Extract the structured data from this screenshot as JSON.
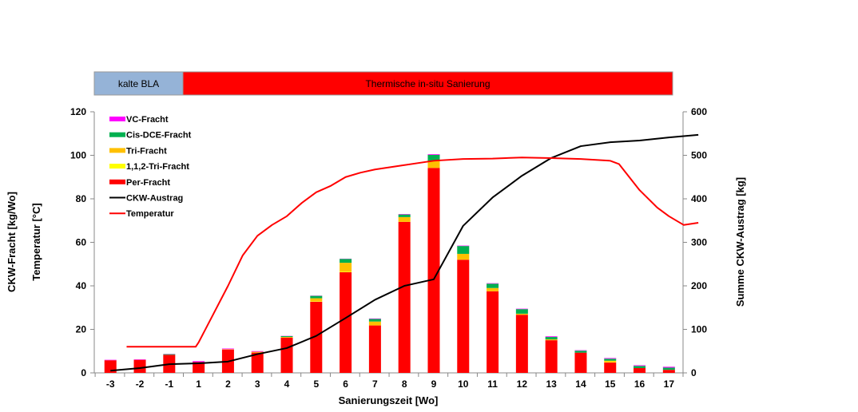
{
  "phase_bar": {
    "phases": [
      {
        "label": "kalte BLA",
        "from_category": "-3",
        "to_category": "1",
        "color": "#95B3D7"
      },
      {
        "label": "Thermische in-situ Sanierung",
        "from_category": "1",
        "to_category": "17",
        "color": "#FF0000"
      }
    ]
  },
  "chart_data": {
    "type": "bar",
    "stacked": true,
    "xlabel": "Sanierungszeit [Wo]",
    "ylabel_left": [
      "CKW-Fracht [kg/Wo]",
      "Temperatur [°C]"
    ],
    "ylabel_right": "Summe CKW-Austrag [kg]",
    "ylim_left": [
      0,
      120
    ],
    "yticks_left": [
      0,
      20,
      40,
      60,
      80,
      100,
      120
    ],
    "ylim_right": [
      0,
      600
    ],
    "yticks_right": [
      0,
      100,
      200,
      300,
      400,
      500,
      600
    ],
    "grid": false,
    "legend_position": "top-left",
    "categories": [
      "-3",
      "-2",
      "-1",
      "1",
      "2",
      "3",
      "4",
      "5",
      "6",
      "7",
      "8",
      "9",
      "10",
      "11",
      "12",
      "13",
      "14",
      "15",
      "16",
      "17"
    ],
    "series": [
      {
        "name": "Per-Fracht",
        "color": "#FF0000",
        "values": [
          5.8,
          6.0,
          8.3,
          5.0,
          10.7,
          9.3,
          16.2,
          32.7,
          46.3,
          21.8,
          69.4,
          94.2,
          52.0,
          37.5,
          26.7,
          15.0,
          9.3,
          4.8,
          2.2,
          1.4
        ]
      },
      {
        "name": "1,1,2-Tri-Fracht",
        "color": "#FFFF00",
        "values": [
          0,
          0,
          0,
          0,
          0,
          0,
          0,
          0.2,
          0.3,
          0,
          0,
          0,
          0,
          0,
          0,
          0,
          0,
          0.3,
          0,
          0
        ]
      },
      {
        "name": "Tri-Fracht",
        "color": "#FFC000",
        "values": [
          0,
          0,
          0,
          0,
          0.2,
          0.4,
          0.3,
          1.4,
          4.0,
          1.8,
          2.2,
          3.2,
          2.7,
          1.5,
          0.5,
          0.4,
          0,
          0.5,
          0,
          0
        ]
      },
      {
        "name": "Cis-DCE-Fracht",
        "color": "#00B050",
        "values": [
          0,
          0,
          0.3,
          0,
          0,
          0,
          0.4,
          1.1,
          1.8,
          1.2,
          1.2,
          2.8,
          3.6,
          2.0,
          2.1,
          1.1,
          0.9,
          0.9,
          1.0,
          1.0
        ]
      },
      {
        "name": "VC-Fracht",
        "color": "#FF00FF",
        "values": [
          0.2,
          0.2,
          0.1,
          0.4,
          0.3,
          0.3,
          0.1,
          0.1,
          0.1,
          0.2,
          0.2,
          0.3,
          0.2,
          0.2,
          0.2,
          0.3,
          0.2,
          0.3,
          0.3,
          0.4
        ]
      }
    ],
    "lines": [
      {
        "name": "CKW-Austrag",
        "color": "#000000",
        "axis": "right",
        "x": [
          0,
          1,
          2,
          3,
          4,
          5,
          6,
          7,
          8,
          9,
          10,
          11,
          12,
          13,
          14,
          15,
          16,
          17,
          18,
          19,
          20
        ],
        "y": [
          5,
          11,
          20,
          22,
          26,
          43,
          57,
          85,
          126,
          168,
          200,
          215,
          338,
          403,
          453,
          494,
          521,
          530,
          534,
          541,
          547
        ]
      },
      {
        "name": "Temperatur",
        "color": "#FF0000",
        "axis": "left",
        "x": [
          0.55,
          2.9,
          3.0,
          3.5,
          4.0,
          4.5,
          5.0,
          5.5,
          6.0,
          6.5,
          7.0,
          7.5,
          8.0,
          8.5,
          9.0,
          10.0,
          11.0,
          12.0,
          13.0,
          14.0,
          15.0,
          16.0,
          17.0,
          17.3,
          18.0,
          18.6,
          19.0,
          19.5,
          20.0
        ],
        "y": [
          12,
          12,
          14,
          27,
          40,
          54,
          63,
          68,
          72,
          78,
          83,
          86,
          90,
          92,
          93.5,
          95.5,
          97.5,
          98.3,
          98.5,
          99,
          98.7,
          98.3,
          97.5,
          96,
          84,
          76,
          72,
          68,
          69
        ]
      }
    ],
    "legend": [
      "VC-Fracht",
      "Cis-DCE-Fracht",
      "Tri-Fracht",
      "1,1,2-Tri-Fracht",
      "Per-Fracht",
      "CKW-Austrag",
      "Temperatur"
    ]
  }
}
